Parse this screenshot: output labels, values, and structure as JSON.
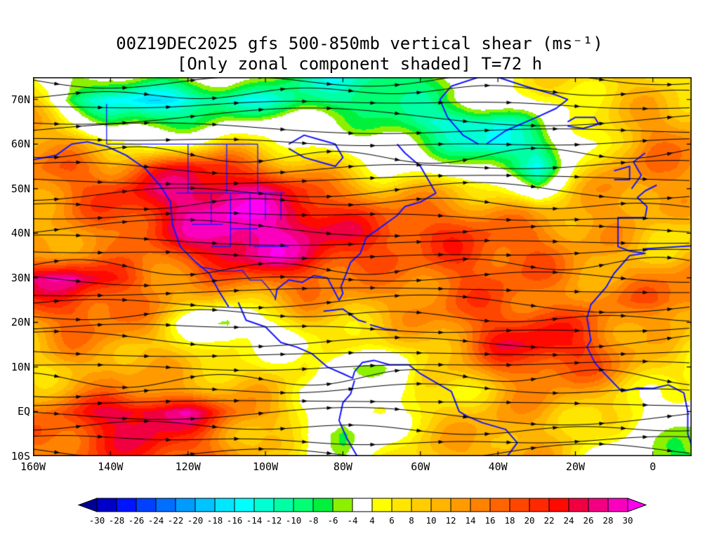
{
  "title": {
    "line1": "00Z19DEC2025 gfs 500-850mb vertical shear (ms⁻¹)",
    "line2": "[Only zonal component shaded] T=72 h"
  },
  "axes": {
    "lat_tick_labels": [
      "70N",
      "60N",
      "50N",
      "40N",
      "30N",
      "20N",
      "10N",
      "EQ",
      "10S"
    ],
    "lat_tick_values": [
      70,
      60,
      50,
      40,
      30,
      20,
      10,
      0,
      -10
    ],
    "lon_tick_labels": [
      "160W",
      "140W",
      "120W",
      "100W",
      "80W",
      "60W",
      "40W",
      "20W",
      "0"
    ],
    "lon_tick_values": [
      -160,
      -140,
      -120,
      -100,
      -80,
      -60,
      -40,
      -20,
      0
    ],
    "lon_range": [
      -160,
      10
    ],
    "lat_range": [
      -10,
      75
    ]
  },
  "colorbar": {
    "ticks": [
      -30,
      -28,
      -26,
      -24,
      -22,
      -20,
      -18,
      -16,
      -14,
      -12,
      -10,
      -8,
      -6,
      -4,
      4,
      6,
      8,
      10,
      12,
      14,
      16,
      18,
      20,
      22,
      24,
      26,
      28,
      30
    ],
    "colors": [
      "#000096",
      "#0000c8",
      "#0014ff",
      "#0041ff",
      "#006eff",
      "#009bff",
      "#00c3ff",
      "#00e6ff",
      "#00ffff",
      "#00ffd2",
      "#00ffa5",
      "#00ff73",
      "#00f03c",
      "#8cf000",
      "#ffffff",
      "#ffff00",
      "#ffe600",
      "#ffcd00",
      "#ffb400",
      "#ff9b00",
      "#ff8200",
      "#ff6400",
      "#ff4600",
      "#ff2800",
      "#ff0a00",
      "#f00041",
      "#f30082",
      "#fa00be",
      "#ff00f0"
    ]
  },
  "chart_data": {
    "type": "heatmap",
    "overlay": "streamlines",
    "title": "00Z19DEC2025 gfs 500-850mb vertical shear (ms⁻¹)",
    "subtitle": "[Only zonal component shaded] T=72 h",
    "units": "ms⁻¹",
    "shaded_variable": "zonal component of 500-850mb vertical shear",
    "levels": [
      -30,
      -28,
      -26,
      -24,
      -22,
      -20,
      -18,
      -16,
      -14,
      -12,
      -10,
      -8,
      -6,
      -4,
      4,
      6,
      8,
      10,
      12,
      14,
      16,
      18,
      20,
      22,
      24,
      26,
      28,
      30
    ],
    "lon": [
      -160,
      -150,
      -140,
      -130,
      -120,
      -110,
      -100,
      -90,
      -80,
      -70,
      -60,
      -50,
      -40,
      -30,
      -20,
      -10,
      0,
      10
    ],
    "lat": [
      75,
      70,
      65,
      60,
      55,
      50,
      45,
      40,
      35,
      30,
      25,
      20,
      15,
      10,
      5,
      0,
      -5,
      -10
    ],
    "values": [
      [
        4,
        -4,
        -8,
        -6,
        -4,
        0,
        -4,
        -8,
        -10,
        -12,
        -8,
        -4,
        2,
        4,
        8,
        10,
        10,
        8
      ],
      [
        6,
        -10,
        -16,
        -18,
        -14,
        -12,
        -10,
        -8,
        -10,
        -12,
        -10,
        -6,
        0,
        4,
        8,
        10,
        12,
        10
      ],
      [
        12,
        4,
        -6,
        -8,
        -6,
        -2,
        0,
        -2,
        -4,
        -8,
        -12,
        -16,
        -12,
        -4,
        4,
        10,
        14,
        12
      ],
      [
        14,
        12,
        6,
        2,
        6,
        8,
        6,
        4,
        2,
        -2,
        -6,
        -10,
        -16,
        -10,
        0,
        10,
        14,
        14
      ],
      [
        16,
        16,
        14,
        18,
        22,
        20,
        16,
        12,
        8,
        4,
        2,
        -2,
        -8,
        -14,
        4,
        12,
        16,
        16
      ],
      [
        14,
        16,
        18,
        22,
        26,
        28,
        26,
        22,
        16,
        12,
        10,
        8,
        4,
        -4,
        8,
        14,
        16,
        14
      ],
      [
        12,
        14,
        16,
        20,
        26,
        30,
        30,
        28,
        22,
        18,
        16,
        14,
        12,
        8,
        12,
        14,
        14,
        12
      ],
      [
        10,
        12,
        14,
        18,
        24,
        30,
        30,
        28,
        26,
        22,
        20,
        18,
        16,
        14,
        12,
        12,
        10,
        10
      ],
      [
        14,
        16,
        14,
        14,
        18,
        26,
        28,
        26,
        22,
        20,
        18,
        20,
        18,
        16,
        12,
        10,
        10,
        12
      ],
      [
        26,
        28,
        22,
        16,
        14,
        16,
        18,
        18,
        16,
        14,
        16,
        18,
        18,
        16,
        14,
        12,
        14,
        16
      ],
      [
        18,
        20,
        18,
        14,
        10,
        8,
        12,
        14,
        12,
        12,
        14,
        16,
        18,
        16,
        14,
        16,
        18,
        18
      ],
      [
        14,
        16,
        14,
        10,
        2,
        -6,
        4,
        10,
        10,
        10,
        12,
        14,
        18,
        20,
        18,
        16,
        14,
        12
      ],
      [
        12,
        14,
        12,
        8,
        4,
        2,
        2,
        6,
        8,
        8,
        10,
        14,
        20,
        22,
        20,
        14,
        10,
        8
      ],
      [
        10,
        12,
        14,
        10,
        8,
        6,
        4,
        6,
        -4,
        0,
        8,
        12,
        16,
        18,
        16,
        12,
        8,
        6
      ],
      [
        12,
        14,
        16,
        14,
        12,
        10,
        8,
        4,
        -2,
        2,
        6,
        8,
        12,
        14,
        12,
        8,
        4,
        2
      ],
      [
        14,
        20,
        26,
        28,
        26,
        18,
        12,
        6,
        -4,
        4,
        8,
        10,
        12,
        12,
        10,
        6,
        2,
        -2
      ],
      [
        16,
        18,
        22,
        24,
        20,
        14,
        10,
        4,
        -6,
        2,
        8,
        10,
        12,
        10,
        8,
        4,
        0,
        -4
      ],
      [
        14,
        16,
        18,
        20,
        18,
        14,
        10,
        6,
        0,
        4,
        8,
        10,
        12,
        10,
        6,
        2,
        -2,
        -6
      ]
    ],
    "coastlines": {
      "na_west": [
        [
          -160,
          56.5
        ],
        [
          -154,
          57.5
        ],
        [
          -150,
          60
        ],
        [
          -146,
          60.5
        ],
        [
          -141,
          59.5
        ],
        [
          -136,
          57.5
        ],
        [
          -131,
          54.5
        ],
        [
          -127,
          50.5
        ],
        [
          -124.5,
          47
        ],
        [
          -124,
          42
        ],
        [
          -122,
          37
        ],
        [
          -118,
          33.5
        ],
        [
          -114.5,
          31
        ],
        [
          -112,
          27
        ],
        [
          -109.5,
          23.5
        ]
      ],
      "mex_west": [
        [
          -107,
          24.5
        ],
        [
          -105,
          20.5
        ],
        [
          -100,
          19
        ],
        [
          -96,
          15.5
        ],
        [
          -92,
          14.5
        ],
        [
          -88,
          13
        ],
        [
          -84,
          10
        ],
        [
          -80,
          8.5
        ],
        [
          -77.5,
          7.5
        ],
        [
          -77,
          9
        ]
      ],
      "gulf_east": [
        [
          -97.5,
          25
        ],
        [
          -97,
          27.5
        ],
        [
          -94,
          29.5
        ],
        [
          -90.5,
          29
        ],
        [
          -87.5,
          30.5
        ],
        [
          -84,
          30
        ],
        [
          -82.5,
          27.5
        ],
        [
          -81,
          25
        ],
        [
          -80,
          26.5
        ],
        [
          -80.5,
          28
        ],
        [
          -78,
          33.5
        ],
        [
          -75.5,
          35.5
        ],
        [
          -74,
          39
        ],
        [
          -70,
          41.5
        ],
        [
          -66,
          44
        ],
        [
          -64,
          46
        ],
        [
          -60,
          47
        ],
        [
          -56,
          49
        ],
        [
          -58,
          52
        ],
        [
          -60,
          55
        ],
        [
          -64,
          58
        ],
        [
          -66,
          60
        ]
      ],
      "hudson": [
        [
          -94,
          59
        ],
        [
          -90,
          57
        ],
        [
          -86,
          56
        ],
        [
          -82,
          55
        ],
        [
          -80,
          57
        ],
        [
          -82,
          60
        ],
        [
          -86,
          61
        ],
        [
          -90,
          62
        ],
        [
          -94,
          60
        ]
      ],
      "greenland": [
        [
          -45,
          60
        ],
        [
          -49,
          62
        ],
        [
          -53,
          66
        ],
        [
          -55,
          70
        ],
        [
          -52,
          73
        ],
        [
          -45,
          75
        ],
        [
          -40,
          75
        ],
        [
          -33,
          73
        ],
        [
          -25,
          71
        ],
        [
          -22,
          70
        ],
        [
          -25,
          68
        ],
        [
          -30,
          66
        ],
        [
          -38,
          63
        ],
        [
          -43,
          60
        ]
      ],
      "iceland": [
        [
          -22,
          64
        ],
        [
          -18,
          63.5
        ],
        [
          -14,
          64.5
        ],
        [
          -15,
          66
        ],
        [
          -20,
          66
        ],
        [
          -22,
          65
        ]
      ],
      "sa_north": [
        [
          -77,
          9
        ],
        [
          -75,
          11
        ],
        [
          -72,
          11.5
        ],
        [
          -68,
          10.5
        ],
        [
          -63,
          10.5
        ],
        [
          -60,
          8.5
        ],
        [
          -55,
          6
        ],
        [
          -52,
          4.5
        ],
        [
          -50,
          0
        ],
        [
          -48,
          -1
        ],
        [
          -44,
          -2.5
        ],
        [
          -38,
          -4
        ],
        [
          -35,
          -7
        ],
        [
          -38,
          -10.5
        ]
      ],
      "sa_west": [
        [
          -77,
          7
        ],
        [
          -78,
          4
        ],
        [
          -80,
          2
        ],
        [
          -81,
          -2
        ],
        [
          -79,
          -6
        ],
        [
          -76,
          -10.5
        ]
      ],
      "cuba": [
        [
          -85,
          22.5
        ],
        [
          -80,
          23
        ],
        [
          -76,
          20.5
        ],
        [
          -74,
          20
        ]
      ],
      "hispaniola": [
        [
          -73,
          19.5
        ],
        [
          -69,
          18.5
        ],
        [
          -66,
          18.3
        ]
      ],
      "uk": [
        [
          -5.5,
          50
        ],
        [
          -3,
          53
        ],
        [
          -5,
          56
        ],
        [
          -2,
          58
        ]
      ],
      "ireland": [
        [
          -10,
          52
        ],
        [
          -6,
          52
        ],
        [
          -6,
          55
        ],
        [
          -10,
          54
        ]
      ],
      "france": [
        [
          -1.5,
          46
        ],
        [
          -4,
          48
        ],
        [
          -2,
          49.5
        ],
        [
          1,
          50.8
        ]
      ],
      "iberia_africa": [
        [
          -1.5,
          46
        ],
        [
          -2,
          43.5
        ],
        [
          -9,
          43.5
        ],
        [
          -9,
          37
        ],
        [
          -6,
          36
        ],
        [
          -2,
          35.5
        ],
        [
          -6,
          35
        ],
        [
          -10,
          31
        ],
        [
          -12,
          28
        ],
        [
          -16,
          24
        ],
        [
          -17,
          21
        ],
        [
          -16,
          16
        ],
        [
          -17,
          14.5
        ],
        [
          -15,
          11
        ],
        [
          -13,
          9
        ],
        [
          -8,
          4.5
        ],
        [
          -4,
          5.3
        ],
        [
          0,
          5.2
        ],
        [
          4,
          6
        ],
        [
          8,
          4.2
        ],
        [
          9,
          0
        ],
        [
          9,
          -5
        ],
        [
          11,
          -10
        ]
      ],
      "med_north": [
        [
          -2,
          36.5
        ],
        [
          3,
          36.8
        ],
        [
          10,
          37.2
        ]
      ]
    },
    "borders": {
      "us_canada": [
        [
          -123,
          49
        ],
        [
          -95,
          49
        ]
      ],
      "canada_60n": [
        [
          -141,
          60
        ],
        [
          -102,
          60
        ]
      ],
      "alaska_yukon": [
        [
          -141,
          69
        ],
        [
          -141,
          60
        ]
      ],
      "prov_1": [
        [
          -120,
          60
        ],
        [
          -120,
          49
        ]
      ],
      "prov_2": [
        [
          -110,
          60
        ],
        [
          -110,
          49
        ]
      ],
      "prov_3": [
        [
          -102,
          60
        ],
        [
          -102,
          49
        ]
      ],
      "state_v1": [
        [
          -114,
          49
        ],
        [
          -114,
          42
        ]
      ],
      "state_v2": [
        [
          -109,
          49
        ],
        [
          -109,
          37
        ]
      ],
      "state_v3": [
        [
          -104,
          49
        ],
        [
          -104,
          37
        ]
      ],
      "state_v4": [
        [
          -100,
          49
        ],
        [
          -100,
          43
        ]
      ],
      "state_v5": [
        [
          -96,
          49
        ],
        [
          -96,
          43
        ]
      ],
      "state_h1": [
        [
          -119,
          42
        ],
        [
          -111,
          42
        ]
      ],
      "state_h2": [
        [
          -109,
          41
        ],
        [
          -102,
          41
        ]
      ],
      "state_h3": [
        [
          -103,
          37
        ],
        [
          -94,
          37
        ]
      ],
      "state_h4": [
        [
          -114,
          37
        ],
        [
          -109,
          37
        ]
      ],
      "us_mexico": [
        [
          -117,
          32.5
        ],
        [
          -111,
          31.5
        ],
        [
          -108,
          31.5
        ],
        [
          -106,
          31.7
        ],
        [
          -104,
          29.5
        ],
        [
          -101,
          29.5
        ],
        [
          -99,
          27.5
        ],
        [
          -97.5,
          25.5
        ]
      ]
    }
  }
}
